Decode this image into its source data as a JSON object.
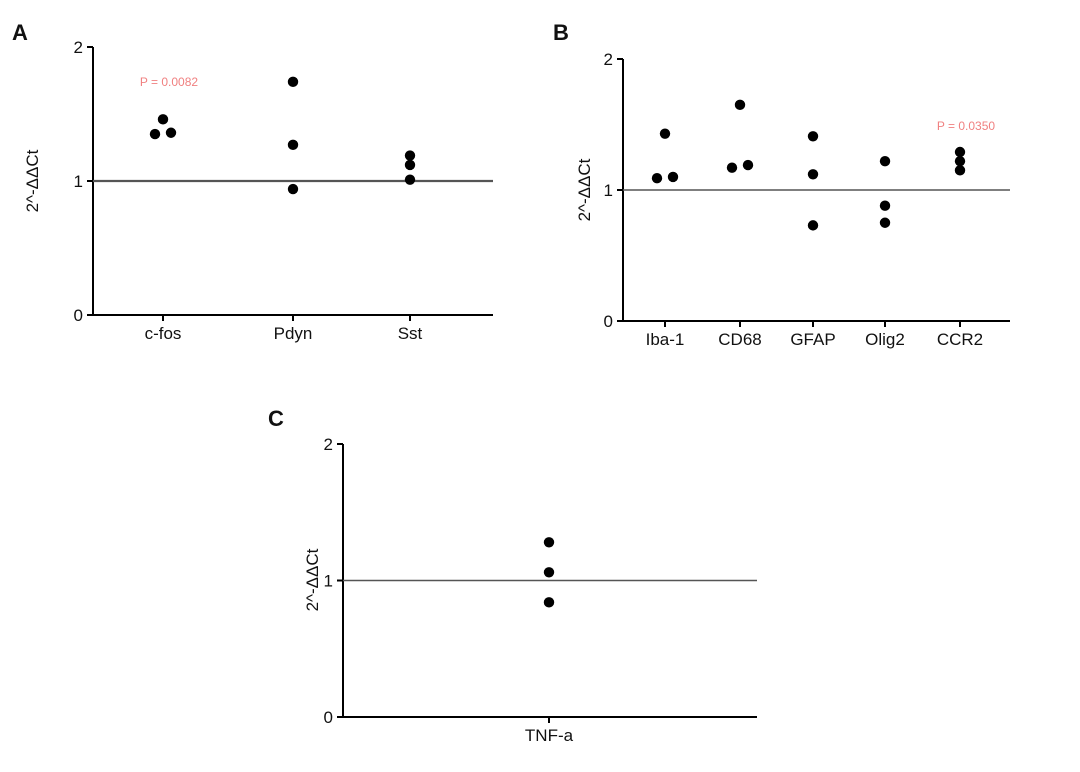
{
  "colors": {
    "points": "#000000",
    "axis": "#000000",
    "reference_line": "#555555",
    "annotation": "#f08080"
  },
  "chart_data": [
    {
      "panel": "A",
      "type": "scatter",
      "ylabel": "2^-ΔΔCt",
      "ylim": [
        0,
        2
      ],
      "yticks": [
        "0",
        "1",
        "2"
      ],
      "categories": [
        "c-fos",
        "Pdyn",
        "Sst"
      ],
      "series": [
        {
          "points": [
            [
              1.35,
              1.46,
              1.36
            ],
            [
              0.94,
              1.27,
              1.74
            ],
            [
              1.01,
              1.12,
              1.19
            ]
          ]
        }
      ],
      "reference_line": 1,
      "annotations": [
        {
          "text": "P = 0.0082",
          "category": "c-fos",
          "y": 1.74
        }
      ]
    },
    {
      "panel": "B",
      "type": "scatter",
      "ylabel": "2^-ΔΔCt",
      "ylim": [
        0,
        2
      ],
      "yticks": [
        "0",
        "1",
        "2"
      ],
      "categories": [
        "Iba-1",
        "CD68",
        "GFAP",
        "Olig2",
        "CCR2"
      ],
      "series": [
        {
          "points": [
            [
              1.09,
              1.43,
              1.1
            ],
            [
              1.17,
              1.65,
              1.19
            ],
            [
              0.73,
              1.12,
              1.41
            ],
            [
              0.75,
              0.88,
              1.22
            ],
            [
              1.15,
              1.22,
              1.29
            ]
          ]
        }
      ],
      "reference_line": 1,
      "annotations": [
        {
          "text": "P = 0.0350",
          "category": "CCR2",
          "y": 1.49
        }
      ]
    },
    {
      "panel": "C",
      "type": "scatter",
      "ylabel": "2^-ΔΔCt",
      "ylim": [
        0,
        2
      ],
      "yticks": [
        "0",
        "1",
        "2"
      ],
      "categories": [
        "TNF-a"
      ],
      "series": [
        {
          "points": [
            [
              0.84,
              1.06,
              1.28
            ]
          ]
        }
      ],
      "reference_line": 1,
      "annotations": []
    }
  ]
}
